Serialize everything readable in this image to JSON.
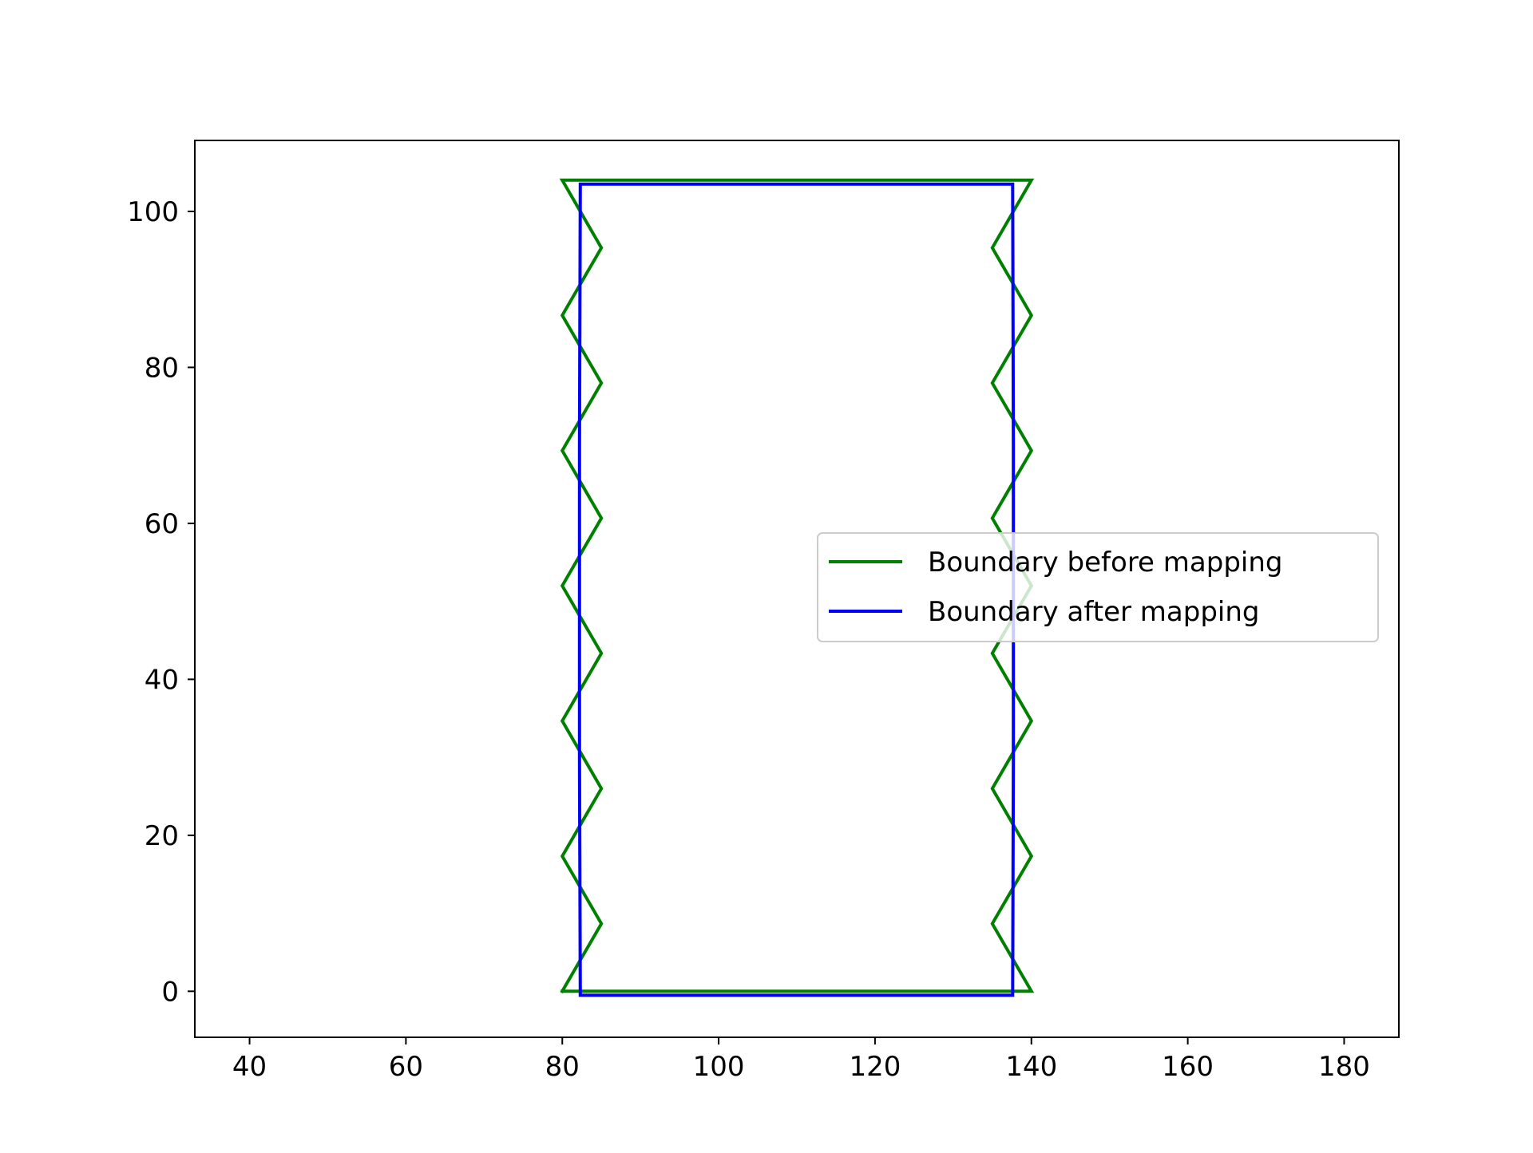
{
  "chart_data": {
    "type": "line",
    "title": "",
    "xlabel": "",
    "ylabel": "",
    "xlim": [
      33,
      187
    ],
    "ylim": [
      -5.9,
      109.1
    ],
    "xticks": [
      40,
      60,
      80,
      100,
      120,
      140,
      160,
      180
    ],
    "yticks": [
      0,
      20,
      40,
      60,
      80,
      100
    ],
    "grid": false,
    "legend": {
      "placement": "center-right"
    },
    "series": [
      {
        "name": "Boundary before mapping",
        "color": "#008000",
        "x": [
          80,
          85,
          80,
          85,
          80,
          85,
          80,
          85,
          80,
          85,
          80,
          85,
          80,
          90,
          100,
          110,
          120,
          130,
          140,
          135,
          140,
          135,
          140,
          135,
          140,
          135,
          140,
          135,
          140,
          135,
          140,
          130,
          120,
          110,
          100,
          90,
          80
        ],
        "y": [
          0,
          8.67,
          17.33,
          26,
          34.67,
          43.33,
          52,
          60.67,
          69.33,
          78,
          86.67,
          95.33,
          104,
          104,
          104,
          104,
          104,
          104,
          104,
          95.33,
          86.67,
          78,
          69.33,
          60.67,
          52,
          43.33,
          34.67,
          26,
          17.33,
          8.67,
          0,
          0,
          0,
          0,
          0,
          0,
          0
        ]
      },
      {
        "name": "Boundary after mapping",
        "color": "#0000ff",
        "x": [
          82.3,
          82.2,
          82.2,
          82.3,
          137.6,
          137.7,
          137.7,
          137.6,
          82.3
        ],
        "y": [
          -0.5,
          30,
          70,
          103.5,
          103.5,
          70,
          30,
          -0.5,
          -0.5
        ]
      }
    ]
  }
}
